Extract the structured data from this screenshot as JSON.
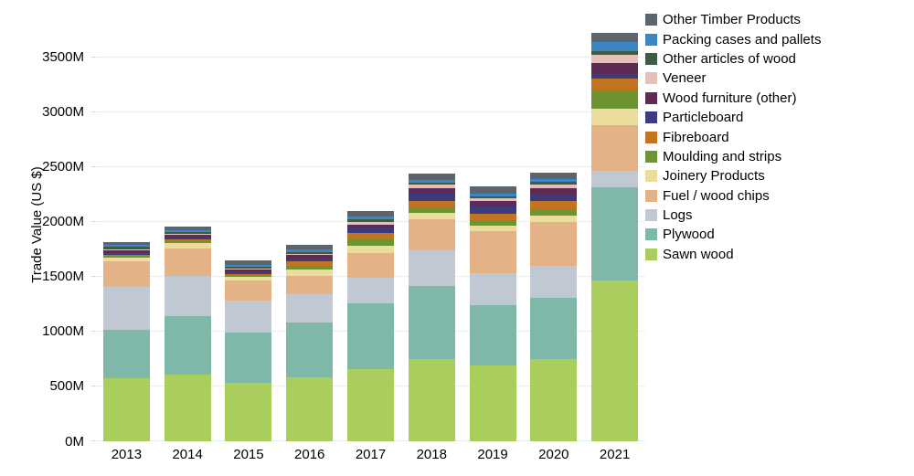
{
  "chart_data": {
    "type": "bar",
    "stacked": true,
    "title": "",
    "xlabel": "",
    "ylabel": "Trade Value (US $)",
    "categories": [
      "2013",
      "2014",
      "2015",
      "2016",
      "2017",
      "2018",
      "2019",
      "2020",
      "2021"
    ],
    "ylim": [
      0,
      3940
    ],
    "ytick_step": 500,
    "y_tick_labels": [
      "0M",
      "500M",
      "1000M",
      "1500M",
      "2000M",
      "2500M",
      "3000M",
      "3500M"
    ],
    "grid": true,
    "legend_position": "top-right",
    "legend_order": "reverse-of-stack",
    "series": [
      {
        "name": "Sawn wood",
        "color": "#a9ce5d",
        "values": [
          575,
          610,
          535,
          580,
          660,
          750,
          695,
          750,
          1470
        ]
      },
      {
        "name": "Plywood",
        "color": "#7fb8a8",
        "values": [
          440,
          535,
          460,
          500,
          600,
          670,
          550,
          555,
          845
        ]
      },
      {
        "name": "Logs",
        "color": "#c0c9d3",
        "values": [
          395,
          365,
          285,
          260,
          230,
          320,
          290,
          295,
          150
        ]
      },
      {
        "name": "Fuel / wood chips",
        "color": "#e3b287",
        "values": [
          230,
          250,
          185,
          165,
          230,
          285,
          380,
          400,
          420
        ]
      },
      {
        "name": "Joinery Products",
        "color": "#eddd9c",
        "values": [
          33,
          45,
          35,
          58,
          65,
          58,
          50,
          58,
          145
        ]
      },
      {
        "name": "Moulding and strips",
        "color": "#6e9432",
        "values": [
          17,
          25,
          20,
          33,
          58,
          50,
          50,
          58,
          165
        ]
      },
      {
        "name": "Fibreboard",
        "color": "#c37420",
        "values": [
          8,
          8,
          8,
          42,
          58,
          58,
          58,
          75,
          115
        ]
      },
      {
        "name": "Particleboard",
        "color": "#3b3b7e",
        "values": [
          17,
          17,
          22,
          25,
          50,
          67,
          67,
          58,
          42
        ]
      },
      {
        "name": "Wood furniture (other)",
        "color": "#5f2b54",
        "values": [
          25,
          25,
          17,
          33,
          25,
          50,
          50,
          58,
          100
        ]
      },
      {
        "name": "Veneer",
        "color": "#e5c0ba",
        "values": [
          8,
          8,
          10,
          8,
          25,
          33,
          25,
          33,
          75
        ]
      },
      {
        "name": "Other articles of wood",
        "color": "#3e5c44",
        "values": [
          25,
          17,
          15,
          17,
          25,
          17,
          17,
          25,
          33
        ]
      },
      {
        "name": "Packing cases and pallets",
        "color": "#3d86c6",
        "values": [
          17,
          17,
          15,
          25,
          25,
          25,
          25,
          25,
          83
        ]
      },
      {
        "name": "Other Timber Products",
        "color": "#5c656e",
        "values": [
          30,
          35,
          45,
          42,
          50,
          58,
          67,
          58,
          83
        ]
      }
    ]
  }
}
